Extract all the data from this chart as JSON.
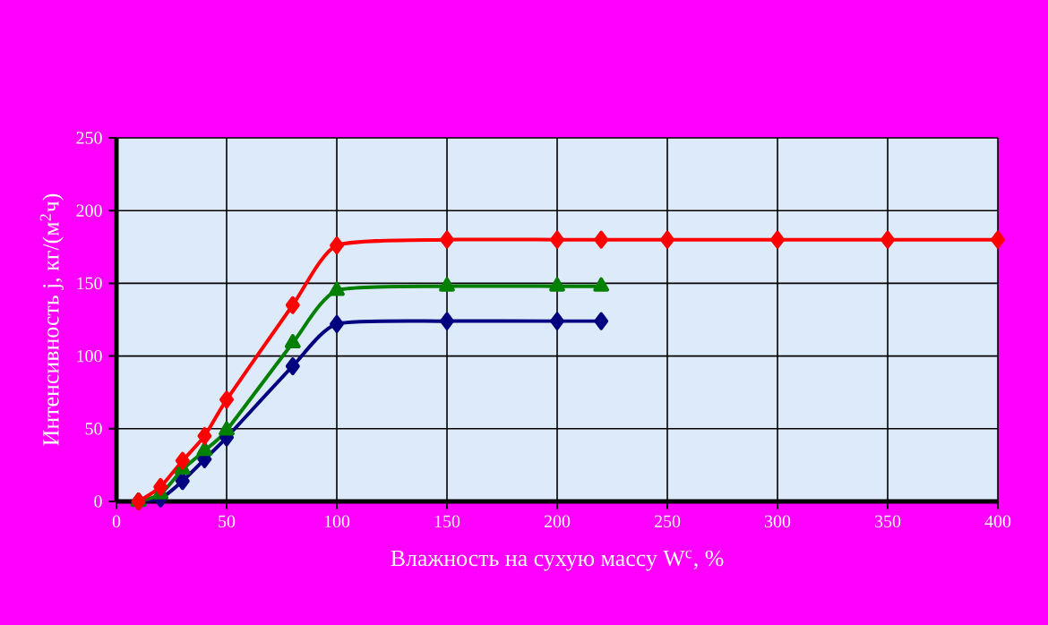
{
  "chart_data": {
    "type": "line",
    "xlabel": "Влажность на сухую массу W$^{с}$, %",
    "ylabel": "Интенсивность j, кг/(м$^{2}$ч)",
    "xlim": [
      0,
      400
    ],
    "ylim": [
      0,
      250
    ],
    "xticks": [
      0,
      50,
      100,
      150,
      200,
      250,
      300,
      350,
      400
    ],
    "yticks": [
      0,
      50,
      100,
      150,
      200,
      250
    ],
    "grid": true,
    "line_style": "solid",
    "series": [
      {
        "color": "#000080",
        "marker": "diamond",
        "x": [
          10,
          20,
          30,
          40,
          50,
          80,
          100,
          150,
          200,
          220
        ],
        "values": [
          0,
          2,
          14,
          29,
          44,
          93,
          122,
          124,
          124,
          124
        ]
      },
      {
        "color": "#008000",
        "marker": "triangle",
        "x": [
          10,
          20,
          30,
          40,
          50,
          80,
          100,
          150,
          200,
          220
        ],
        "values": [
          0,
          5,
          22,
          35,
          49,
          109,
          145,
          148,
          148,
          148
        ]
      },
      {
        "color": "#ff0000",
        "marker": "diamond",
        "x": [
          10,
          20,
          30,
          40,
          50,
          80,
          100,
          150,
          200,
          220,
          250,
          300,
          350,
          400
        ],
        "values": [
          0,
          10,
          28,
          45,
          70,
          135,
          176,
          180,
          180,
          180,
          180,
          180,
          180,
          180
        ]
      }
    ]
  }
}
